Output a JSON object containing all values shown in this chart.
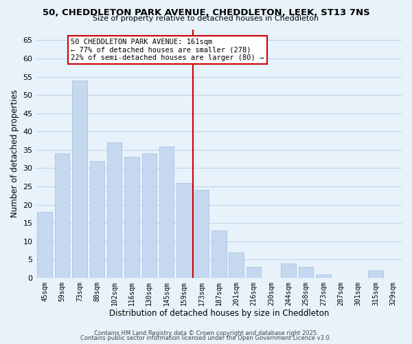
{
  "title": "50, CHEDDLETON PARK AVENUE, CHEDDLETON, LEEK, ST13 7NS",
  "subtitle": "Size of property relative to detached houses in Cheddleton",
  "xlabel": "Distribution of detached houses by size in Cheddleton",
  "ylabel": "Number of detached properties",
  "categories": [
    "45sqm",
    "59sqm",
    "73sqm",
    "88sqm",
    "102sqm",
    "116sqm",
    "130sqm",
    "145sqm",
    "159sqm",
    "173sqm",
    "187sqm",
    "201sqm",
    "216sqm",
    "230sqm",
    "244sqm",
    "258sqm",
    "273sqm",
    "287sqm",
    "301sqm",
    "315sqm",
    "329sqm"
  ],
  "values": [
    18,
    34,
    54,
    32,
    37,
    33,
    34,
    36,
    26,
    24,
    13,
    7,
    3,
    0,
    4,
    3,
    1,
    0,
    0,
    2,
    0
  ],
  "bar_color": "#c5d8f0",
  "bar_edge_color": "#aac4e0",
  "vline_x_index": 8,
  "vline_color": "#cc0000",
  "ylim": [
    0,
    68
  ],
  "yticks": [
    0,
    5,
    10,
    15,
    20,
    25,
    30,
    35,
    40,
    45,
    50,
    55,
    60,
    65
  ],
  "annotation_title": "50 CHEDDLETON PARK AVENUE: 161sqm",
  "annotation_line1": "← 77% of detached houses are smaller (278)",
  "annotation_line2": "22% of semi-detached houses are larger (80) →",
  "annotation_box_color": "#ffffff",
  "annotation_box_edge": "#cc0000",
  "grid_color": "#c0d4e8",
  "bg_color": "#e8f2fa",
  "footer1": "Contains HM Land Registry data © Crown copyright and database right 2025.",
  "footer2": "Contains public sector information licensed under the Open Government Licence v3.0."
}
